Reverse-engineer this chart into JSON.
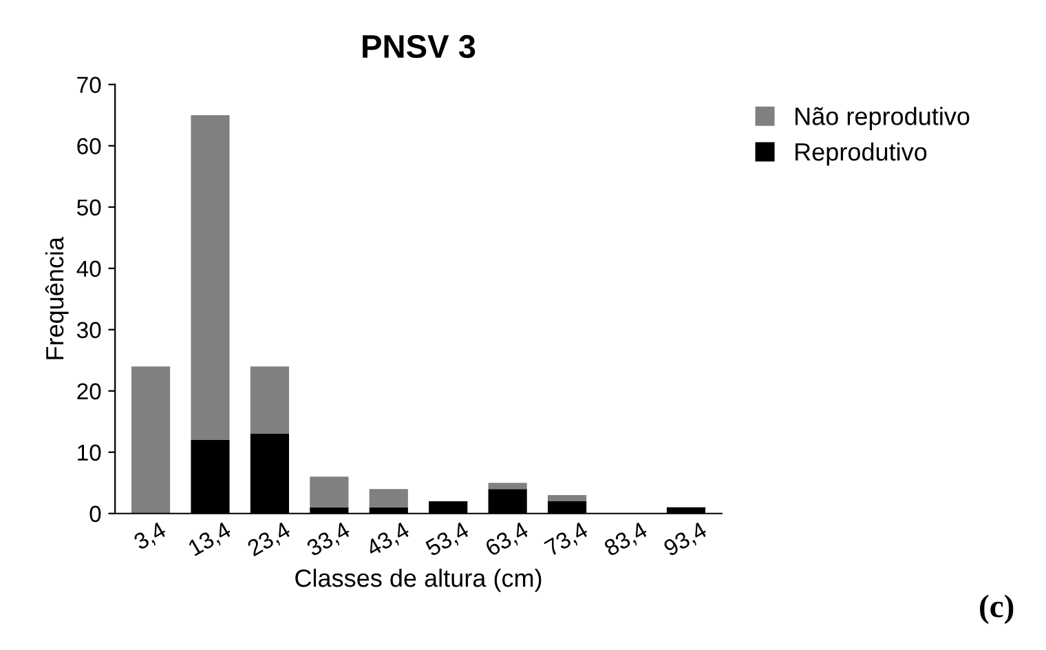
{
  "chart_data": {
    "type": "bar",
    "title": "PNSV 3",
    "xlabel": "Classes de altura (cm)",
    "ylabel": "Frequência",
    "categories": [
      "3,4",
      "13,4",
      "23,4",
      "33,4",
      "43,4",
      "53,4",
      "63,4",
      "73,4",
      "83,4",
      "93,4"
    ],
    "stacked": true,
    "series": [
      {
        "name": "Reprodutivo",
        "color": "#000000",
        "values": [
          0,
          12,
          13,
          1,
          1,
          2,
          4,
          2,
          0,
          1
        ]
      },
      {
        "name": "Não reprodutivo",
        "color": "#808080",
        "values": [
          24,
          53,
          11,
          5,
          3,
          0,
          1,
          1,
          0,
          0
        ]
      }
    ],
    "ylim": [
      0,
      70
    ],
    "yticks": [
      0,
      10,
      20,
      30,
      40,
      50,
      60,
      70
    ],
    "grid": false,
    "legend": "top right",
    "annotations": [
      "(c)"
    ]
  }
}
